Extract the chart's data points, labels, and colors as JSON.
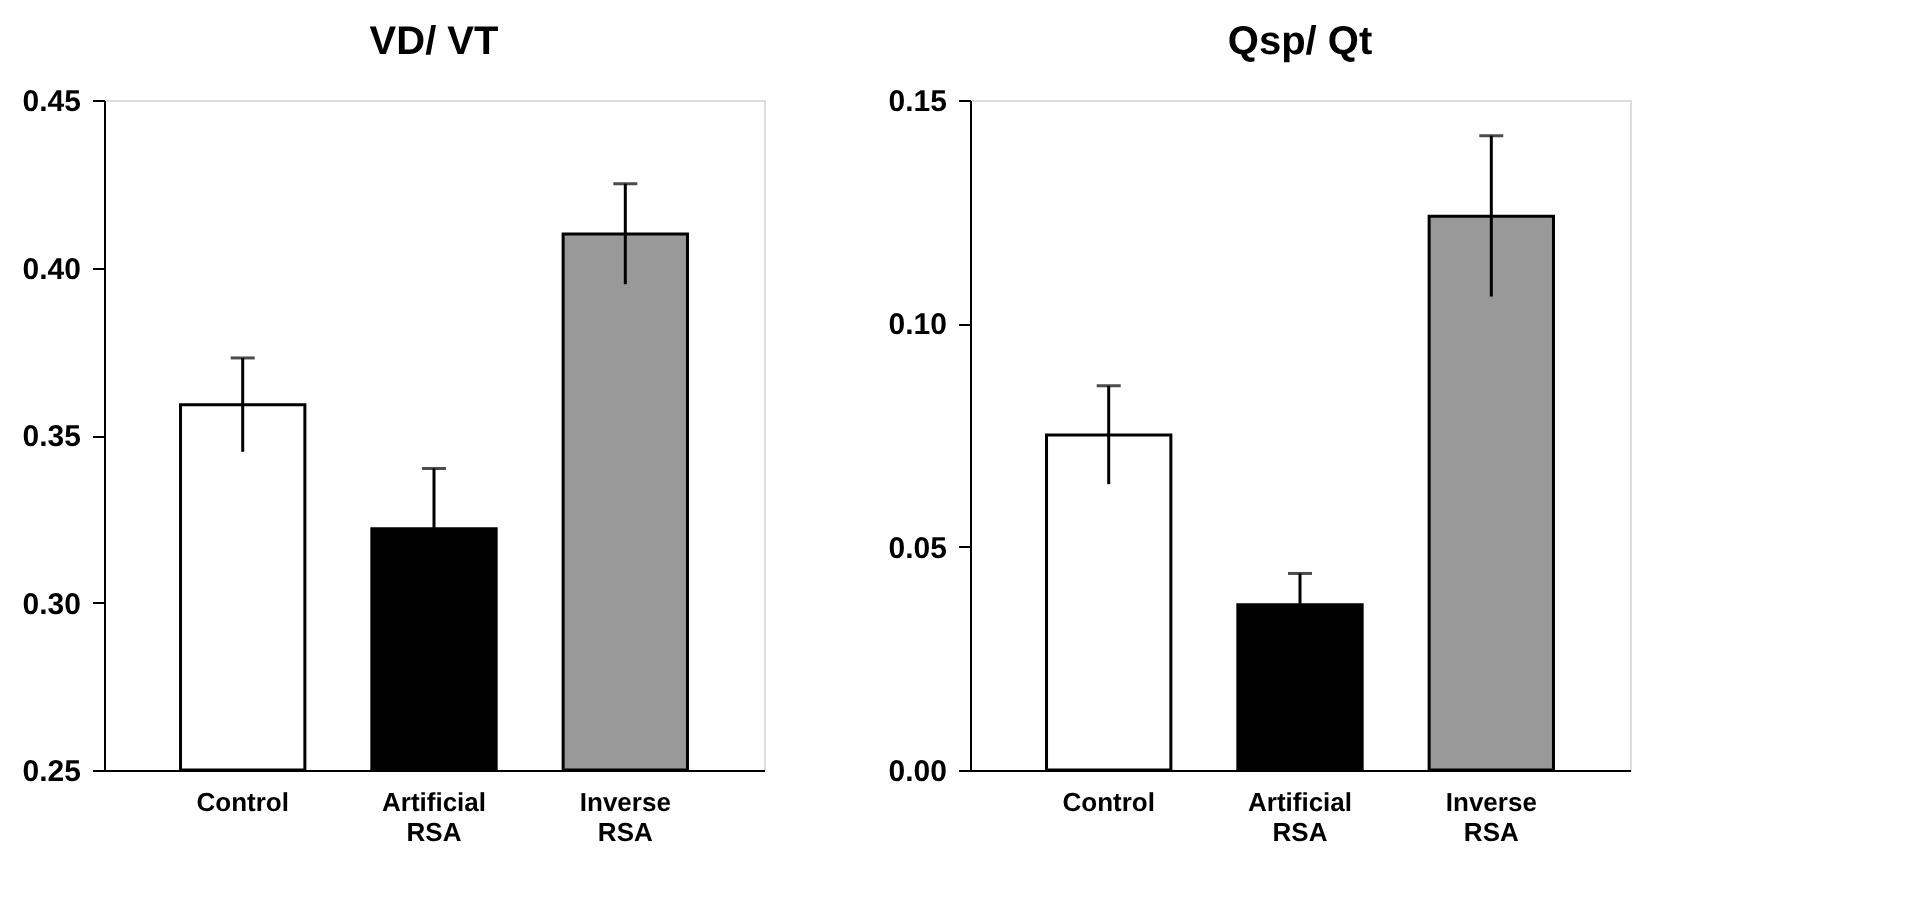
{
  "chart_data": [
    {
      "type": "bar",
      "title": "VD/ VT",
      "categories": [
        "Control",
        "Artificial RSA",
        "Inverse RSA"
      ],
      "values": [
        0.359,
        0.322,
        0.41
      ],
      "errors": [
        0.014,
        0.018,
        0.015
      ],
      "colors": [
        "#ffffff",
        "#000000",
        "#999999"
      ],
      "ylim": [
        0.25,
        0.45
      ],
      "yticks": [
        {
          "value": 0.25,
          "label": "0.25"
        },
        {
          "value": 0.3,
          "label": "0.30"
        },
        {
          "value": 0.35,
          "label": "0.35"
        },
        {
          "value": 0.4,
          "label": "0.40"
        },
        {
          "value": 0.45,
          "label": "0.45"
        }
      ]
    },
    {
      "type": "bar",
      "title": "Qsp/ Qt",
      "categories": [
        "Control",
        "Artificial RSA",
        "Inverse RSA"
      ],
      "values": [
        0.075,
        0.037,
        0.124
      ],
      "errors": [
        0.011,
        0.007,
        0.018
      ],
      "colors": [
        "#ffffff",
        "#000000",
        "#999999"
      ],
      "ylim": [
        0,
        0.15
      ],
      "yticks": [
        {
          "value": 0,
          "label": "0.00"
        },
        {
          "value": 0.05,
          "label": "0.05"
        },
        {
          "value": 0.1,
          "label": "0.10"
        },
        {
          "value": 0.15,
          "label": "0.15"
        }
      ]
    }
  ]
}
